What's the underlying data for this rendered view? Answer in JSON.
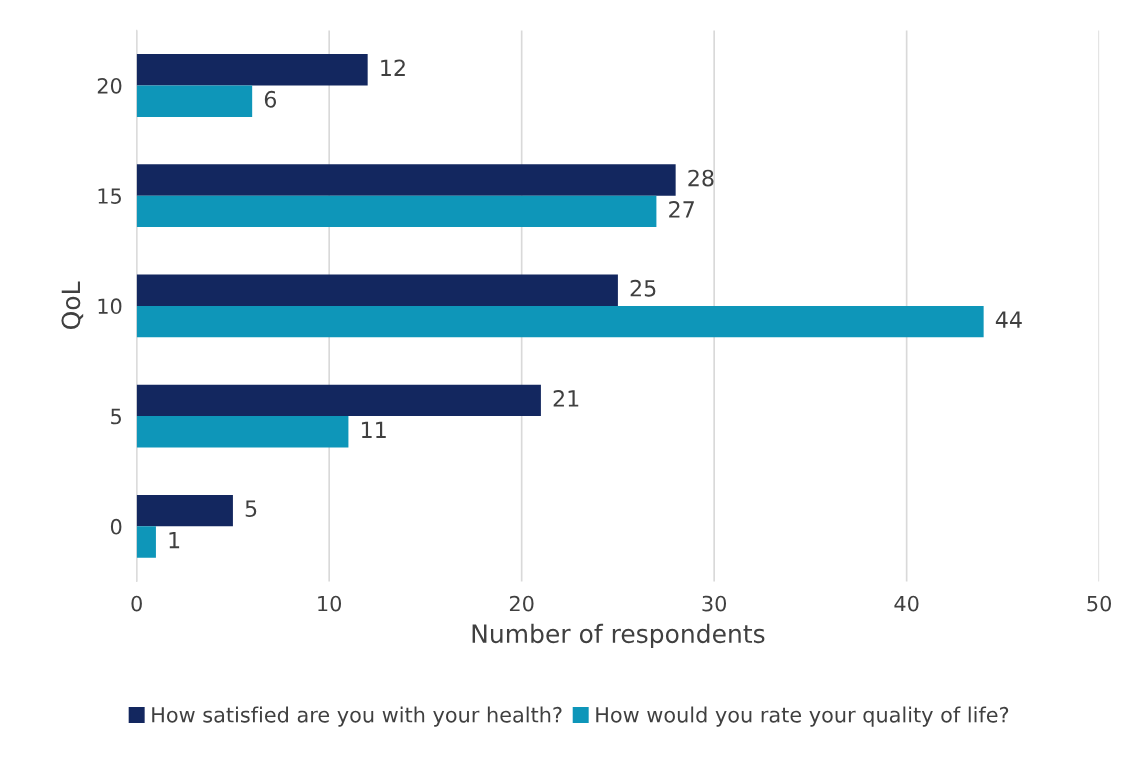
{
  "chart_data": {
    "type": "bar",
    "orientation": "horizontal",
    "ylabel": "QoL",
    "xlabel": "Number of respondents",
    "categories": [
      "20",
      "15",
      "10",
      "5",
      "0"
    ],
    "series": [
      {
        "name": "How satisfied are you with your health?",
        "color": "#13275f",
        "values": [
          12,
          28,
          25,
          21,
          5
        ]
      },
      {
        "name": "How would you rate your quality of life?",
        "color": "#0e96b9",
        "values": [
          6,
          27,
          44,
          11,
          1
        ]
      }
    ],
    "data_labels": true,
    "xlim": [
      0,
      50
    ],
    "xticks": [
      0,
      10,
      20,
      30,
      40,
      50
    ],
    "grid": "x",
    "legend": "bottom"
  }
}
